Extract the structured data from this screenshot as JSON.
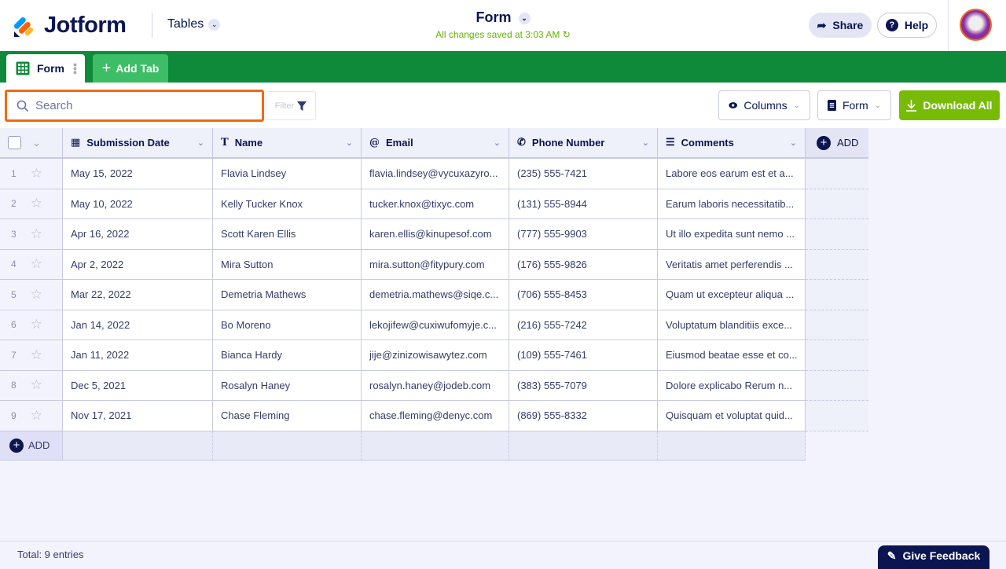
{
  "header": {
    "brand": "Jotform",
    "app_switcher": "Tables",
    "title": "Form",
    "save_status": "All changes saved at 3:03 AM",
    "share_label": "Share",
    "help_label": "Help",
    "help_icon_glyph": "?"
  },
  "tabs": {
    "items": [
      {
        "label": "Form"
      }
    ],
    "add_tab_label": "Add Tab"
  },
  "toolbar": {
    "search_placeholder": "Search",
    "search_value": "",
    "filter_label": "Filter",
    "columns_label": "Columns",
    "form_label": "Form",
    "download_label": "Download All"
  },
  "table": {
    "columns": [
      {
        "label": "Submission Date",
        "icon": "calendar-icon"
      },
      {
        "label": "Name",
        "icon": "text-icon"
      },
      {
        "label": "Email",
        "icon": "at-icon"
      },
      {
        "label": "Phone Number",
        "icon": "phone-icon"
      },
      {
        "label": "Comments",
        "icon": "paragraph-icon"
      }
    ],
    "add_column_label": "ADD",
    "add_row_label": "ADD",
    "rows": [
      {
        "num": "1",
        "cells": [
          "May 15, 2022",
          "Flavia Lindsey",
          "flavia.lindsey@vycuxazyro...",
          "(235) 555-7421",
          "Labore eos earum est et a..."
        ]
      },
      {
        "num": "2",
        "cells": [
          "May 10, 2022",
          "Kelly Tucker Knox",
          "tucker.knox@tixyc.com",
          "(131) 555-8944",
          "Earum laboris necessitatib..."
        ]
      },
      {
        "num": "3",
        "cells": [
          "Apr 16, 2022",
          "Scott Karen Ellis",
          "karen.ellis@kinupesof.com",
          "(777) 555-9903",
          "Ut illo expedita sunt nemo ..."
        ]
      },
      {
        "num": "4",
        "cells": [
          "Apr 2, 2022",
          "Mira Sutton",
          "mira.sutton@fitypury.com",
          "(176) 555-9826",
          "Veritatis amet perferendis ..."
        ]
      },
      {
        "num": "5",
        "cells": [
          "Mar 22, 2022",
          "Demetria Mathews",
          "demetria.mathews@siqe.c...",
          "(706) 555-8453",
          "Quam ut excepteur aliqua ..."
        ]
      },
      {
        "num": "6",
        "cells": [
          "Jan 14, 2022",
          "Bo Moreno",
          "lekojifew@cuxiwufomyje.c...",
          "(216) 555-7242",
          "Voluptatum blanditiis exce..."
        ]
      },
      {
        "num": "7",
        "cells": [
          "Jan 11, 2022",
          "Bianca Hardy",
          "jije@zinizowisawytez.com",
          "(109) 555-7461",
          "Eiusmod beatae esse et co..."
        ]
      },
      {
        "num": "8",
        "cells": [
          "Dec 5, 2021",
          "Rosalyn Haney",
          "rosalyn.haney@jodeb.com",
          "(383) 555-7079",
          "Dolore explicabo Rerum n..."
        ]
      },
      {
        "num": "9",
        "cells": [
          "Nov 17, 2021",
          "Chase Fleming",
          "chase.fleming@denyc.com",
          "(869) 555-8332",
          "Quisquam et voluptat quid..."
        ]
      }
    ]
  },
  "footer": {
    "total": "Total: 9 entries",
    "feedback_label": "Give Feedback"
  },
  "colors": {
    "brand_navy": "#0a1551",
    "tab_bar_green": "#0f8a3a",
    "download_green": "#78bb07",
    "search_highlight": "#f06a10"
  }
}
